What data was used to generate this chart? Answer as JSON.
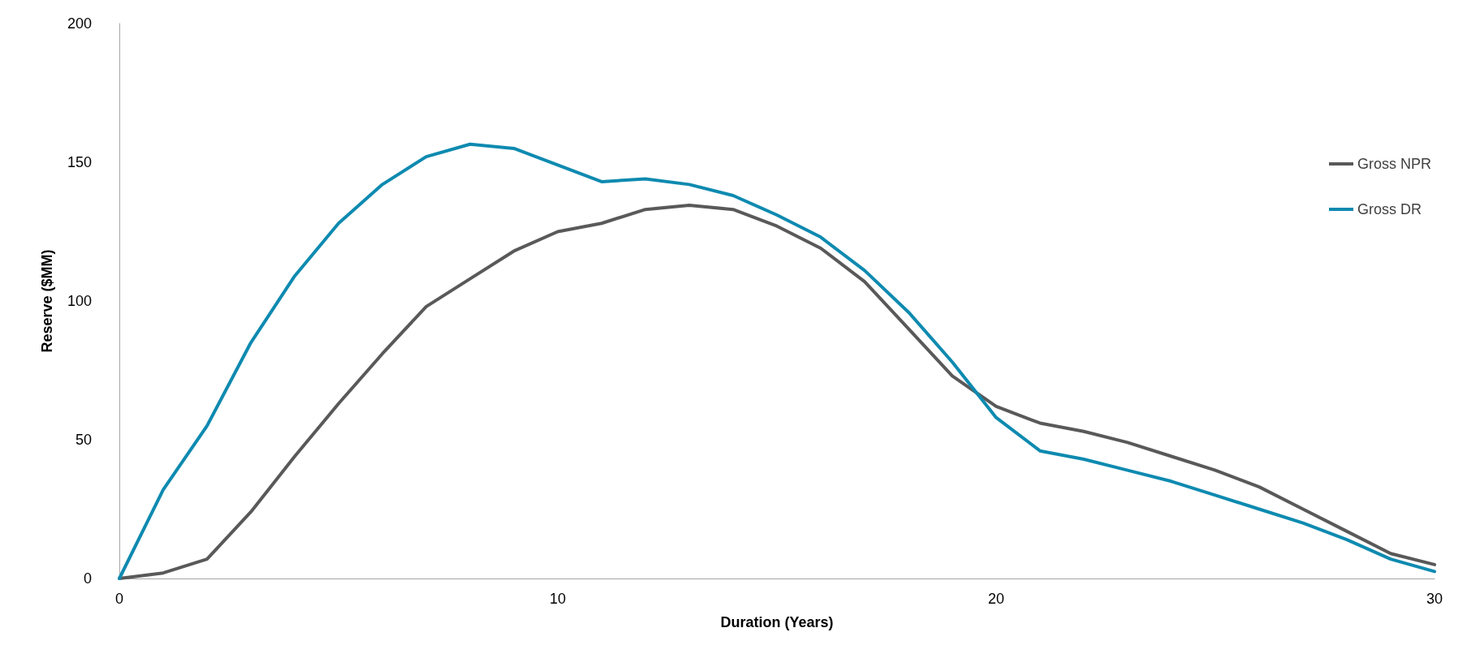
{
  "chart_data": {
    "type": "line",
    "xlabel": "Duration (Years)",
    "ylabel": "Reserve ($MM)",
    "x": [
      0,
      1,
      2,
      3,
      4,
      5,
      6,
      7,
      8,
      9,
      10,
      11,
      12,
      13,
      14,
      15,
      16,
      17,
      18,
      19,
      20,
      21,
      22,
      23,
      24,
      25,
      26,
      27,
      28,
      29,
      30
    ],
    "series": [
      {
        "name": "Gross NPR",
        "color": "#595959",
        "values": [
          0,
          2,
          7,
          24,
          44,
          63,
          81,
          98,
          108,
          118,
          125,
          128,
          133,
          134.5,
          133,
          127,
          119,
          107,
          90,
          73,
          62,
          56,
          53,
          49,
          44,
          39,
          33,
          25,
          17,
          9,
          5
        ]
      },
      {
        "name": "Gross DR",
        "color": "#0e8ab0",
        "values": [
          0,
          32,
          55,
          85,
          109,
          128,
          142,
          152,
          156.5,
          155,
          149,
          143,
          144,
          142,
          138,
          131,
          123,
          111,
          96,
          78,
          58,
          46,
          43,
          39,
          35,
          30,
          25,
          20,
          14,
          7,
          2.5
        ]
      }
    ],
    "xlim": [
      0,
      30
    ],
    "xticks": [
      0,
      10,
      20,
      30
    ],
    "ylim": [
      0,
      200
    ],
    "yticks": [
      0,
      50,
      100,
      150,
      200
    ],
    "grid": false,
    "legend": "right",
    "marker": "none",
    "line_style": "solid"
  }
}
